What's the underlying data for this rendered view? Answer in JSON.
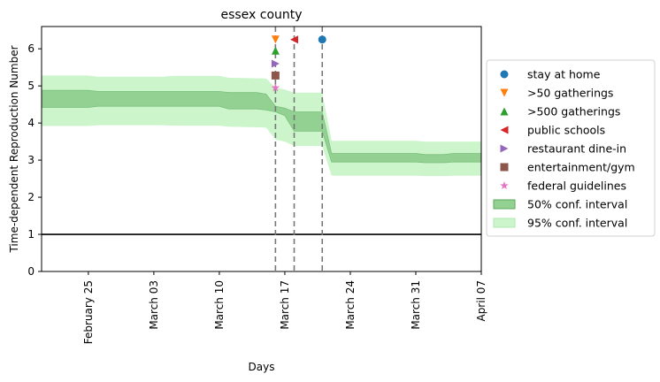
{
  "chart_data": {
    "type": "line",
    "title": "essex county",
    "xlabel": "Days",
    "ylabel": "Time-dependent Reproduction Number",
    "x_start": "2020-02-20",
    "x_end": "2020-04-07",
    "ylim": [
      0,
      6.6
    ],
    "yticks": [
      0,
      1,
      2,
      3,
      4,
      5,
      6
    ],
    "xticks": [
      {
        "date": "2020-02-25",
        "label": "February 25"
      },
      {
        "date": "2020-03-03",
        "label": "March 03"
      },
      {
        "date": "2020-03-10",
        "label": "March 10"
      },
      {
        "date": "2020-03-17",
        "label": "March 17"
      },
      {
        "date": "2020-03-24",
        "label": "March 24"
      },
      {
        "date": "2020-03-31",
        "label": "March 31"
      },
      {
        "date": "2020-04-07",
        "label": "April 07"
      }
    ],
    "reference_line": {
      "y": 1,
      "color": "#000000"
    },
    "band_95": {
      "name": "95% conf. interval",
      "color": "#ccf5cc",
      "dates": [
        "2020-02-20",
        "2020-02-25",
        "2020-02-26",
        "2020-03-04",
        "2020-03-05",
        "2020-03-10",
        "2020-03-11",
        "2020-03-15",
        "2020-03-16",
        "2020-03-17",
        "2020-03-18",
        "2020-03-21",
        "2020-03-22",
        "2020-03-31",
        "2020-04-01",
        "2020-04-03",
        "2020-04-04",
        "2020-04-07"
      ],
      "lower": [
        3.92,
        3.92,
        3.94,
        3.94,
        3.93,
        3.93,
        3.9,
        3.88,
        3.55,
        3.5,
        3.38,
        3.38,
        2.58,
        2.58,
        2.57,
        2.57,
        2.58,
        2.58
      ],
      "upper": [
        5.28,
        5.28,
        5.25,
        5.25,
        5.27,
        5.27,
        5.22,
        5.2,
        4.95,
        4.9,
        4.82,
        4.82,
        3.52,
        3.52,
        3.5,
        3.5,
        3.5,
        3.5
      ]
    },
    "band_50": {
      "name": "50% conf. interval",
      "color": "#93d193",
      "dates": [
        "2020-02-20",
        "2020-02-25",
        "2020-02-26",
        "2020-03-10",
        "2020-03-11",
        "2020-03-14",
        "2020-03-15",
        "2020-03-16",
        "2020-03-17",
        "2020-03-18",
        "2020-03-21",
        "2020-03-22",
        "2020-03-31",
        "2020-04-01",
        "2020-04-03",
        "2020-04-04",
        "2020-04-07"
      ],
      "lower": [
        4.42,
        4.42,
        4.45,
        4.45,
        4.38,
        4.38,
        4.35,
        4.3,
        4.2,
        3.78,
        3.78,
        2.95,
        2.95,
        2.93,
        2.93,
        2.95,
        2.95
      ],
      "upper": [
        4.88,
        4.88,
        4.85,
        4.85,
        4.82,
        4.82,
        4.78,
        4.45,
        4.4,
        4.3,
        4.3,
        3.18,
        3.18,
        3.15,
        3.15,
        3.18,
        3.18
      ]
    },
    "interventions": [
      {
        "name": "stay at home",
        "date": "2020-03-21",
        "y": 6.25,
        "marker": "circle",
        "color": "#1f77b4"
      },
      {
        "name": ">50 gatherings",
        "date": "2020-03-16",
        "y": 6.25,
        "marker": "triangle-down",
        "color": "#ff7f0e"
      },
      {
        "name": ">500 gatherings",
        "date": "2020-03-16",
        "y": 5.95,
        "marker": "triangle-up",
        "color": "#2ca02c"
      },
      {
        "name": "public schools",
        "date": "2020-03-18",
        "y": 6.25,
        "marker": "triangle-left",
        "color": "#d62728"
      },
      {
        "name": "restaurant dine-in",
        "date": "2020-03-16",
        "y": 5.6,
        "marker": "triangle-right",
        "color": "#9467bd"
      },
      {
        "name": "entertainment/gym",
        "date": "2020-03-16",
        "y": 5.28,
        "marker": "square",
        "color": "#8c564b"
      },
      {
        "name": "federal guidelines",
        "date": "2020-03-16",
        "y": 4.95,
        "marker": "star",
        "color": "#e377c2"
      }
    ],
    "vlines": [
      "2020-03-16",
      "2020-03-18",
      "2020-03-21"
    ],
    "legend_position": "right"
  }
}
